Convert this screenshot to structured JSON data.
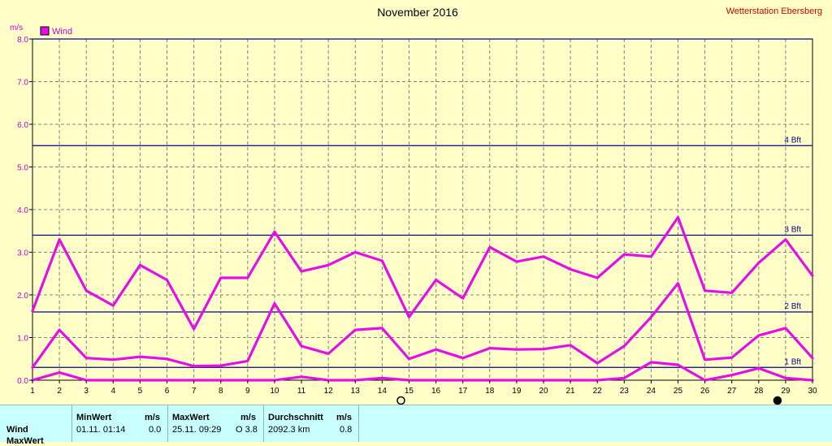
{
  "header": {
    "title": "November 2016",
    "station": "Wetterstation Ebersberg",
    "unit": "m/s"
  },
  "legend": {
    "label": "Wind",
    "color": "#e60ee6"
  },
  "chart_data": {
    "type": "line",
    "title": "November 2016",
    "ylabel": "m/s",
    "x": [
      1,
      2,
      3,
      4,
      5,
      6,
      7,
      8,
      9,
      10,
      11,
      12,
      13,
      14,
      15,
      16,
      17,
      18,
      19,
      20,
      21,
      22,
      23,
      24,
      25,
      26,
      27,
      28,
      29,
      30
    ],
    "xlim": [
      1,
      30
    ],
    "ylim": [
      0,
      8
    ],
    "yticks": [
      "0.0",
      "1.0",
      "2.0",
      "3.0",
      "4.0",
      "5.0",
      "6.0",
      "7.0",
      "8.0"
    ],
    "grid": true,
    "legend_position": "top-left",
    "series": [
      {
        "name": "Wind",
        "role": "max",
        "values": [
          1.62,
          3.3,
          2.1,
          1.75,
          2.7,
          2.35,
          1.2,
          2.4,
          2.4,
          3.48,
          2.55,
          2.7,
          3.0,
          2.8,
          1.48,
          2.35,
          1.92,
          3.12,
          2.78,
          2.9,
          2.6,
          2.4,
          2.95,
          2.9,
          3.82,
          2.1,
          2.05,
          2.75,
          3.3,
          2.45
        ]
      },
      {
        "name": "Wind",
        "role": "avg",
        "values": [
          0.3,
          1.18,
          0.52,
          0.48,
          0.55,
          0.5,
          0.33,
          0.34,
          0.45,
          1.8,
          0.8,
          0.62,
          1.18,
          1.22,
          0.5,
          0.72,
          0.52,
          0.75,
          0.72,
          0.73,
          0.82,
          0.4,
          0.8,
          1.48,
          2.27,
          0.48,
          0.53,
          1.05,
          1.22,
          0.52
        ]
      },
      {
        "name": "Wind",
        "role": "min",
        "values": [
          0.0,
          0.18,
          0.0,
          0.0,
          0.0,
          0.0,
          0.0,
          0.0,
          0.0,
          0.0,
          0.08,
          0.0,
          0.0,
          0.05,
          0.0,
          0.0,
          0.0,
          0.0,
          0.0,
          0.0,
          0.0,
          0.0,
          0.05,
          0.42,
          0.36,
          0.0,
          0.12,
          0.28,
          0.05,
          0.0
        ]
      }
    ],
    "reference_lines": [
      {
        "label": "1 Bft",
        "value": 0.3
      },
      {
        "label": "2 Bft",
        "value": 1.6
      },
      {
        "label": "3 Bft",
        "value": 3.4
      },
      {
        "label": "4 Bft",
        "value": 5.5
      },
      {
        "label": "",
        "value": 8.0
      }
    ],
    "markers": [
      {
        "name": "full-moon-icon",
        "day": 15
      },
      {
        "name": "new-moon-icon",
        "day": 29
      }
    ]
  },
  "stats": {
    "row_label": "Wind",
    "row2_label": "MaxWert",
    "min": {
      "header": "MinWert",
      "unit": "m/s",
      "time": "01.11.  01:14",
      "value": "0.0"
    },
    "max": {
      "header": "MaxWert",
      "unit": "m/s",
      "time": "25.11.  09:29",
      "value": "O 3.8"
    },
    "avg": {
      "header": "Durchschnitt",
      "unit": "m/s",
      "distance": "2092.3 km",
      "value": "0.8"
    }
  }
}
